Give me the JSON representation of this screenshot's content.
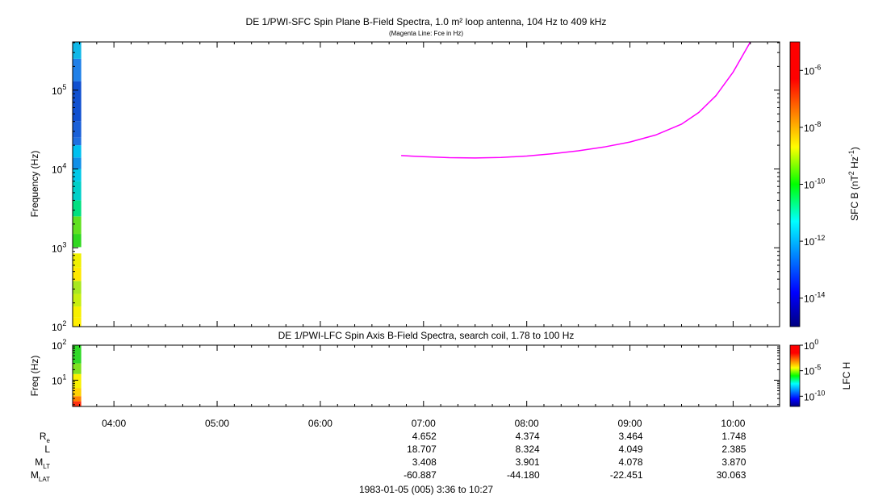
{
  "chart_data": [
    {
      "type": "heatmap",
      "title": "DE 1/PWI-SFC  Spin Plane B-Field Spectra, 1.0 m² loop antenna, 104 Hz to 409 kHz",
      "subtitle": "(Magenta Line: Fce in Hz)",
      "ylabel": "Frequency (Hz)",
      "yscale": "log",
      "ylim": [
        100,
        409000
      ],
      "yticks": [
        {
          "base": "10",
          "exp": "2",
          "value": 100
        },
        {
          "base": "10",
          "exp": "3",
          "value": 1000
        },
        {
          "base": "10",
          "exp": "4",
          "value": 10000
        },
        {
          "base": "10",
          "exp": "5",
          "value": 100000
        }
      ],
      "colorbar": {
        "label_prefix": "SFC B (nT",
        "label_exp1": "2",
        "label_mid": " Hz",
        "label_exp2": "-1",
        "label_suffix": ")",
        "scale": "log",
        "range": [
          1e-15,
          1e-05
        ],
        "ticks": [
          {
            "base": "10",
            "exp": "-6",
            "value": 1e-06
          },
          {
            "base": "10",
            "exp": "-8",
            "value": 1e-08
          },
          {
            "base": "10",
            "exp": "-10",
            "value": 1e-10
          },
          {
            "base": "10",
            "exp": "-12",
            "value": 1e-12
          },
          {
            "base": "10",
            "exp": "-14",
            "value": 1e-14
          }
        ]
      },
      "data_column": {
        "time_start": "03:36",
        "time_end": "03:41",
        "bands": [
          {
            "f0": 100,
            "f1": 130,
            "color": "#ffee00"
          },
          {
            "f0": 130,
            "f1": 180,
            "color": "#f7f000"
          },
          {
            "f0": 180,
            "f1": 260,
            "color": "#c8ef10"
          },
          {
            "f0": 260,
            "f1": 380,
            "color": "#a8e820"
          },
          {
            "f0": 380,
            "f1": 560,
            "color": "#ffe800"
          },
          {
            "f0": 560,
            "f1": 850,
            "color": "#f0f000"
          },
          {
            "f0": 850,
            "f1": 1020,
            "color": "#ffffff"
          },
          {
            "f0": 1020,
            "f1": 1500,
            "color": "#30d820"
          },
          {
            "f0": 1500,
            "f1": 2500,
            "color": "#60e020"
          },
          {
            "f0": 2500,
            "f1": 4000,
            "color": "#00e080"
          },
          {
            "f0": 4000,
            "f1": 7000,
            "color": "#00d0c8"
          },
          {
            "f0": 7000,
            "f1": 10000,
            "color": "#00c8e8"
          },
          {
            "f0": 10000,
            "f1": 14000,
            "color": "#1090e8"
          },
          {
            "f0": 14000,
            "f1": 20000,
            "color": "#00c0f0"
          },
          {
            "f0": 20000,
            "f1": 25000,
            "color": "#2070e0"
          },
          {
            "f0": 25000,
            "f1": 40000,
            "color": "#1a60d8"
          },
          {
            "f0": 40000,
            "f1": 130000,
            "color": "#1050d0"
          },
          {
            "f0": 130000,
            "f1": 250000,
            "color": "#2080e8"
          },
          {
            "f0": 250000,
            "f1": 409000,
            "color": "#10b8e8"
          }
        ]
      },
      "series": [
        {
          "type": "line",
          "color": "#ff00ff",
          "x": [
            "06:47",
            "07:00",
            "07:15",
            "07:30",
            "07:45",
            "08:00",
            "08:15",
            "08:30",
            "08:45",
            "09:00",
            "09:15",
            "09:30",
            "09:40",
            "09:50",
            "10:00",
            "10:10"
          ],
          "y": [
            14800,
            14300,
            13900,
            13800,
            14000,
            14600,
            15600,
            17000,
            19000,
            22000,
            27000,
            37000,
            52000,
            85000,
            170000,
            409000
          ]
        }
      ]
    },
    {
      "type": "heatmap",
      "title": "DE 1/PWI-LFC  Spin Axis B-Field Spectra, search coil, 1.78 to 100 Hz",
      "ylabel": "Freq (Hz)",
      "yscale": "log",
      "ylim": [
        1.78,
        100
      ],
      "yticks": [
        {
          "base": "10",
          "exp": "1",
          "value": 10
        },
        {
          "base": "10",
          "exp": "2",
          "value": 100
        }
      ],
      "colorbar": {
        "label": "LFC H",
        "scale": "log",
        "range": [
          1e-12,
          1
        ],
        "ticks": [
          {
            "base": "10",
            "exp": "0",
            "value": 1
          },
          {
            "base": "10",
            "exp": "-5",
            "value": 1e-05
          },
          {
            "base": "10",
            "exp": "-10",
            "value": 1e-10
          }
        ]
      },
      "data_column": {
        "time_start": "03:36",
        "time_end": "03:41",
        "bands": [
          {
            "f0": 1.78,
            "f1": 2.5,
            "color": "#ff3010"
          },
          {
            "f0": 2.5,
            "f1": 3.5,
            "color": "#ff8000"
          },
          {
            "f0": 3.5,
            "f1": 6,
            "color": "#ffd000"
          },
          {
            "f0": 6,
            "f1": 15,
            "color": "#f8f000"
          },
          {
            "f0": 15,
            "f1": 30,
            "color": "#80e020"
          },
          {
            "f0": 30,
            "f1": 100,
            "color": "#30d828"
          }
        ]
      }
    }
  ],
  "time_axis": {
    "range": [
      "03:36",
      "10:27"
    ],
    "ticks": [
      "04:00",
      "05:00",
      "06:00",
      "07:00",
      "08:00",
      "09:00",
      "10:00"
    ]
  },
  "ephemeris": {
    "labels": [
      {
        "main": "R",
        "sub": "e"
      },
      {
        "main": "L",
        "sub": ""
      },
      {
        "main": "M",
        "sub": "LT"
      },
      {
        "main": "M",
        "sub": "LAT"
      }
    ],
    "columns": [
      {
        "time": "07:00",
        "values": [
          "4.652",
          "18.707",
          "3.408",
          "-60.887"
        ]
      },
      {
        "time": "08:00",
        "values": [
          "4.374",
          "8.324",
          "3.901",
          "-44.180"
        ]
      },
      {
        "time": "09:00",
        "values": [
          "3.464",
          "4.049",
          "4.078",
          "-22.451"
        ]
      },
      {
        "time": "10:00",
        "values": [
          "1.748",
          "2.385",
          "3.870",
          "30.063"
        ]
      }
    ]
  },
  "date_line": "1983-01-05 (005) 3:36 to 10:27"
}
